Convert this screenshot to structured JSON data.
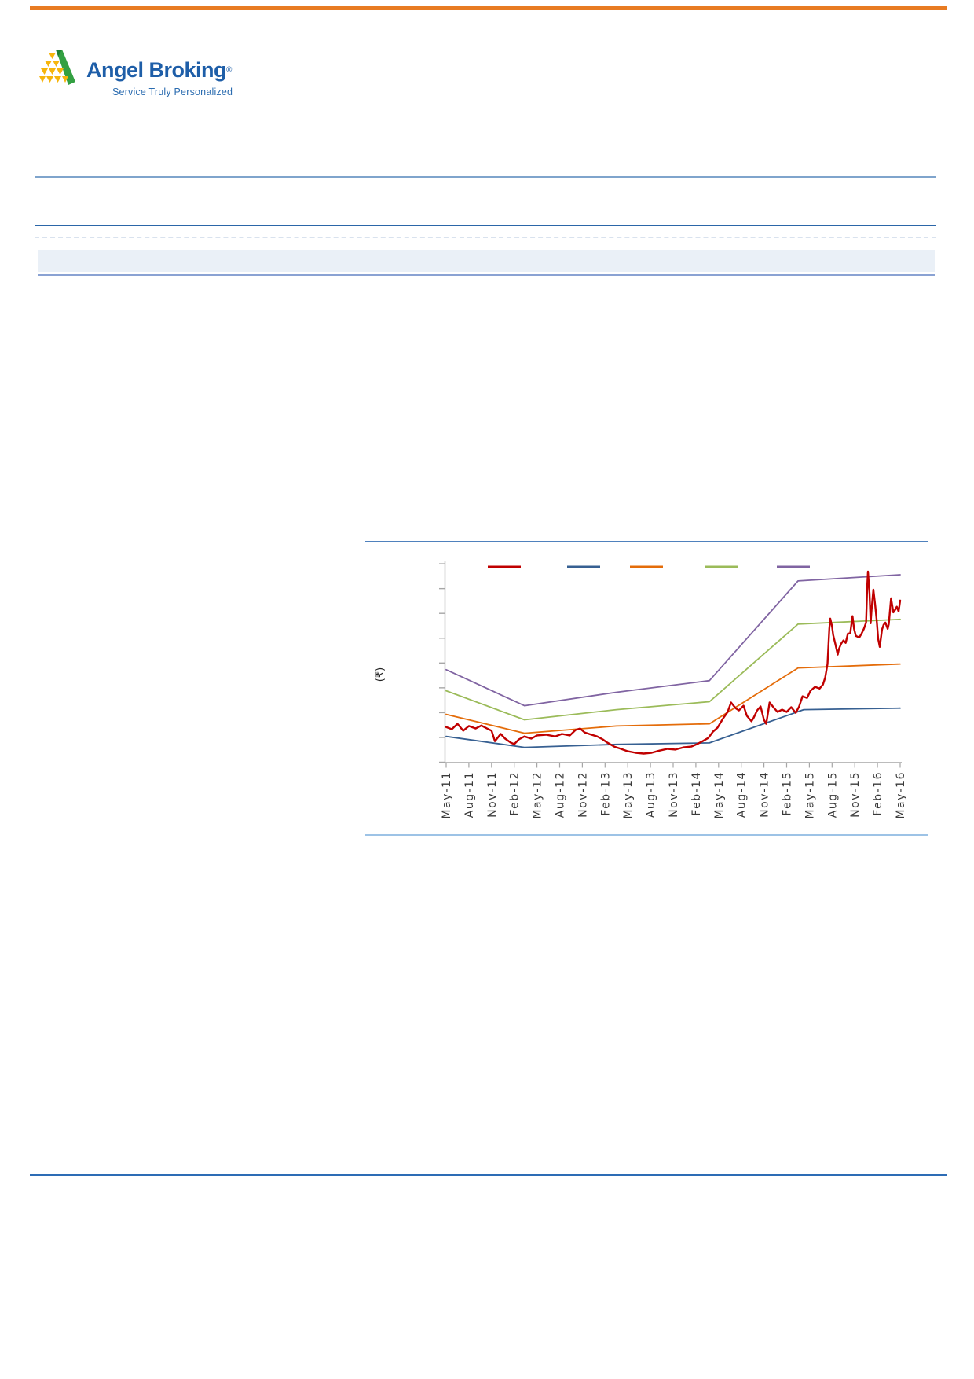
{
  "page": {
    "background": "#ffffff"
  },
  "top_bar": {
    "color": "#E87B22"
  },
  "logo": {
    "brand": "Angel Broking",
    "reg_mark": "®",
    "tagline": "Service Truly Personalized",
    "brand_color": "#1E5EA8",
    "tagline_color": "#2B6CB0",
    "mark_green": "#33A042",
    "mark_green_dark": "#1E7F35",
    "mark_yellow": "#F7B50C"
  },
  "rules": {
    "header_rule_primary_color": "#7FA4CC",
    "header_rule_secondary_color": "#2B66A8",
    "dashed_rule_color": "#D9E2EE",
    "band_fill": "#EAF0F7",
    "band_underline_color": "#8AA2D3",
    "chart_top_rule_color": "#4F81BD",
    "chart_bottom_rule_color": "#9DC3E6",
    "footer_rule_color": "#2D6CB5"
  },
  "chart_data": {
    "type": "line",
    "title": "",
    "units_note": "y values are in axis-tick units (0 = bottom tick, 8 = top tick) because the y-axis shows ticks but no numeric labels; x is quarters since May-11 (0..20)",
    "axis_color": "#A6A6A6",
    "label_color": "#3A3A3A",
    "y_axis": {
      "label": "(₹)",
      "tick_count": 9,
      "tick_unit_range": [
        0,
        8
      ],
      "numeric_tick_labels_visible": false
    },
    "x_axis": {
      "rotated_degrees": -90,
      "labels": [
        "May-11",
        "Aug-11",
        "Nov-11",
        "Feb-12",
        "May-12",
        "Aug-12",
        "Nov-12",
        "Feb-13",
        "May-13",
        "Aug-13",
        "Nov-13",
        "Feb-14",
        "May-14",
        "Aug-14",
        "Nov-14",
        "Feb-15",
        "May-15",
        "Aug-15",
        "Nov-15",
        "Feb-16",
        "May-16"
      ]
    },
    "legend": {
      "position": "top",
      "labels_visible": false,
      "swatch_colors": [
        "#C00000",
        "#376092",
        "#E46C0A",
        "#9BBB59",
        "#8064A2"
      ]
    },
    "series": [
      {
        "name": "band-upper-purple",
        "color": "#8064A2",
        "width": 1.8,
        "points": [
          [
            0,
            3.73
          ],
          [
            3.45,
            2.28
          ],
          [
            7.5,
            2.82
          ],
          [
            11.6,
            3.29
          ],
          [
            15.5,
            7.31
          ],
          [
            20,
            7.56
          ]
        ]
      },
      {
        "name": "band-green",
        "color": "#9BBB59",
        "width": 1.8,
        "points": [
          [
            0,
            2.88
          ],
          [
            3.45,
            1.71
          ],
          [
            7.5,
            2.12
          ],
          [
            11.6,
            2.44
          ],
          [
            15.5,
            5.57
          ],
          [
            20,
            5.76
          ]
        ]
      },
      {
        "name": "band-orange",
        "color": "#E46C0A",
        "width": 1.8,
        "points": [
          [
            0,
            1.93
          ],
          [
            3.45,
            1.17
          ],
          [
            7.5,
            1.46
          ],
          [
            11.6,
            1.55
          ],
          [
            15.5,
            3.8
          ],
          [
            20,
            3.96
          ]
        ]
      },
      {
        "name": "band-lower-blue",
        "color": "#376092",
        "width": 1.8,
        "points": [
          [
            0,
            1.04
          ],
          [
            3.45,
            0.6
          ],
          [
            7.5,
            0.72
          ],
          [
            11.6,
            0.78
          ],
          [
            15.75,
            2.12
          ],
          [
            20,
            2.18
          ]
        ]
      },
      {
        "name": "price-red",
        "color": "#C00000",
        "width": 2.4,
        "points": [
          [
            0,
            1.42
          ],
          [
            0.25,
            1.33
          ],
          [
            0.5,
            1.55
          ],
          [
            0.75,
            1.27
          ],
          [
            1,
            1.46
          ],
          [
            1.3,
            1.36
          ],
          [
            1.55,
            1.48
          ],
          [
            1.8,
            1.36
          ],
          [
            2,
            1.27
          ],
          [
            2.15,
            0.85
          ],
          [
            2.4,
            1.14
          ],
          [
            2.6,
            0.95
          ],
          [
            2.85,
            0.79
          ],
          [
            3,
            0.73
          ],
          [
            3.2,
            0.92
          ],
          [
            3.45,
            1.04
          ],
          [
            3.75,
            0.95
          ],
          [
            4,
            1.08
          ],
          [
            4.4,
            1.11
          ],
          [
            4.8,
            1.04
          ],
          [
            5.1,
            1.14
          ],
          [
            5.45,
            1.08
          ],
          [
            5.7,
            1.3
          ],
          [
            5.9,
            1.36
          ],
          [
            6.1,
            1.2
          ],
          [
            6.4,
            1.11
          ],
          [
            6.65,
            1.04
          ],
          [
            6.9,
            0.92
          ],
          [
            7.1,
            0.79
          ],
          [
            7.4,
            0.63
          ],
          [
            7.7,
            0.54
          ],
          [
            8,
            0.44
          ],
          [
            8.35,
            0.38
          ],
          [
            8.7,
            0.35
          ],
          [
            9.05,
            0.38
          ],
          [
            9.4,
            0.47
          ],
          [
            9.75,
            0.54
          ],
          [
            10.1,
            0.51
          ],
          [
            10.45,
            0.6
          ],
          [
            10.8,
            0.63
          ],
          [
            11.05,
            0.73
          ],
          [
            11.3,
            0.85
          ],
          [
            11.55,
            0.98
          ],
          [
            11.75,
            1.23
          ],
          [
            11.95,
            1.39
          ],
          [
            12.2,
            1.77
          ],
          [
            12.4,
            2.03
          ],
          [
            12.55,
            2.41
          ],
          [
            12.75,
            2.18
          ],
          [
            12.9,
            2.09
          ],
          [
            13.1,
            2.28
          ],
          [
            13.25,
            1.87
          ],
          [
            13.45,
            1.65
          ],
          [
            13.55,
            1.8
          ],
          [
            13.7,
            2.09
          ],
          [
            13.85,
            2.25
          ],
          [
            14,
            1.71
          ],
          [
            14.1,
            1.55
          ],
          [
            14.25,
            2.41
          ],
          [
            14.45,
            2.18
          ],
          [
            14.6,
            2.03
          ],
          [
            14.8,
            2.12
          ],
          [
            15,
            2.03
          ],
          [
            15.2,
            2.22
          ],
          [
            15.4,
            1.99
          ],
          [
            15.55,
            2.25
          ],
          [
            15.7,
            2.66
          ],
          [
            15.9,
            2.59
          ],
          [
            16.05,
            2.88
          ],
          [
            16.25,
            3.04
          ],
          [
            16.45,
            2.97
          ],
          [
            16.6,
            3.13
          ],
          [
            16.7,
            3.42
          ],
          [
            16.8,
            3.96
          ],
          [
            16.88,
            5.38
          ],
          [
            16.92,
            5.79
          ],
          [
            17,
            5.47
          ],
          [
            17.05,
            5.13
          ],
          [
            17.15,
            4.75
          ],
          [
            17.25,
            4.34
          ],
          [
            17.3,
            4.56
          ],
          [
            17.4,
            4.78
          ],
          [
            17.5,
            4.91
          ],
          [
            17.6,
            4.81
          ],
          [
            17.7,
            5.19
          ],
          [
            17.8,
            5.19
          ],
          [
            17.9,
            5.89
          ],
          [
            17.97,
            5.38
          ],
          [
            18.05,
            5.09
          ],
          [
            18.2,
            5.03
          ],
          [
            18.3,
            5.19
          ],
          [
            18.4,
            5.38
          ],
          [
            18.5,
            5.63
          ],
          [
            18.55,
            7.12
          ],
          [
            18.58,
            7.69
          ],
          [
            18.65,
            6.8
          ],
          [
            18.7,
            5.6
          ],
          [
            18.75,
            6.27
          ],
          [
            18.82,
            6.96
          ],
          [
            18.9,
            6.33
          ],
          [
            18.97,
            5.7
          ],
          [
            19.03,
            4.97
          ],
          [
            19.1,
            4.65
          ],
          [
            19.2,
            5.35
          ],
          [
            19.27,
            5.54
          ],
          [
            19.35,
            5.63
          ],
          [
            19.45,
            5.38
          ],
          [
            19.5,
            5.57
          ],
          [
            19.6,
            6.61
          ],
          [
            19.7,
            6.04
          ],
          [
            19.8,
            6.17
          ],
          [
            19.85,
            6.27
          ],
          [
            19.93,
            6.08
          ],
          [
            20,
            6.52
          ]
        ]
      }
    ]
  }
}
